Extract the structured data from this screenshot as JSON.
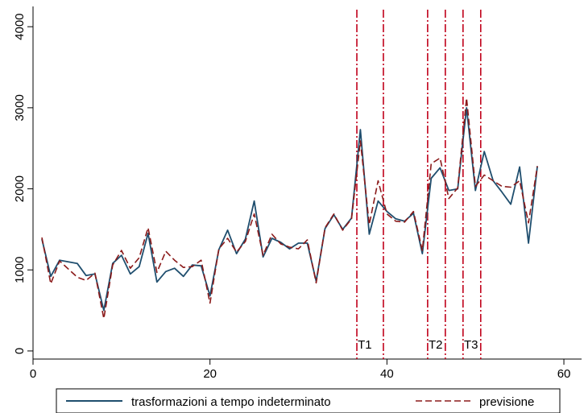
{
  "chart_data": {
    "type": "line",
    "title": "",
    "xlabel": "",
    "ylabel": "",
    "xlim": [
      0,
      62
    ],
    "ylim": [
      -100,
      4250
    ],
    "x_ticks": [
      "0",
      "20",
      "40",
      "60"
    ],
    "y_ticks": [
      "0",
      "1000",
      "2000",
      "3000",
      "4000"
    ],
    "grid": false,
    "legend_position": "bottom",
    "x": [
      1,
      2,
      3,
      4,
      5,
      6,
      7,
      8,
      9,
      10,
      11,
      12,
      13,
      14,
      15,
      16,
      17,
      18,
      19,
      20,
      21,
      22,
      23,
      24,
      25,
      26,
      27,
      28,
      29,
      30,
      31,
      32,
      33,
      34,
      35,
      36,
      37,
      38,
      39,
      40,
      41,
      42,
      43,
      44,
      45,
      46,
      47,
      48,
      49,
      50,
      51,
      52,
      53,
      54,
      55,
      56,
      57
    ],
    "series": [
      {
        "name": "trasformazioni a tempo indeterminato",
        "color": "#1f4e6e",
        "dash": "solid",
        "values": [
          1380,
          920,
          1120,
          1100,
          1080,
          930,
          950,
          500,
          1080,
          1180,
          950,
          1040,
          1450,
          850,
          980,
          1020,
          920,
          1060,
          1050,
          680,
          1250,
          1490,
          1200,
          1380,
          1850,
          1160,
          1390,
          1340,
          1260,
          1330,
          1330,
          860,
          1510,
          1680,
          1500,
          1640,
          2730,
          1440,
          1850,
          1720,
          1630,
          1600,
          1700,
          1200,
          2130,
          2260,
          1980,
          2000,
          3000,
          1980,
          2460,
          2100,
          1960,
          1810,
          2270,
          1330,
          2280
        ]
      },
      {
        "name": "previsione",
        "color": "#8b1a1a",
        "dash": "dashed",
        "values": [
          1400,
          830,
          1110,
          1010,
          910,
          870,
          960,
          400,
          1060,
          1240,
          1020,
          1150,
          1520,
          970,
          1230,
          1120,
          1030,
          1040,
          1120,
          590,
          1260,
          1390,
          1220,
          1350,
          1690,
          1180,
          1440,
          1320,
          1280,
          1260,
          1370,
          840,
          1520,
          1690,
          1490,
          1630,
          2590,
          1560,
          2100,
          1690,
          1600,
          1590,
          1720,
          1240,
          2310,
          2380,
          1880,
          2010,
          3120,
          2030,
          2170,
          2100,
          2030,
          2020,
          2100,
          1580,
          2280
        ]
      }
    ],
    "reference_lines": [
      {
        "x": 36.6,
        "color": "#c0001a"
      },
      {
        "x": 39.6,
        "color": "#c0001a"
      },
      {
        "x": 44.6,
        "color": "#c0001a"
      },
      {
        "x": 46.6,
        "color": "#c0001a"
      },
      {
        "x": 48.6,
        "color": "#c0001a"
      },
      {
        "x": 50.6,
        "color": "#c0001a"
      }
    ],
    "annotations": [
      {
        "text": "T1",
        "x": 37.5
      },
      {
        "text": "T2",
        "x": 45.5
      },
      {
        "text": "T3",
        "x": 49.5
      }
    ]
  }
}
